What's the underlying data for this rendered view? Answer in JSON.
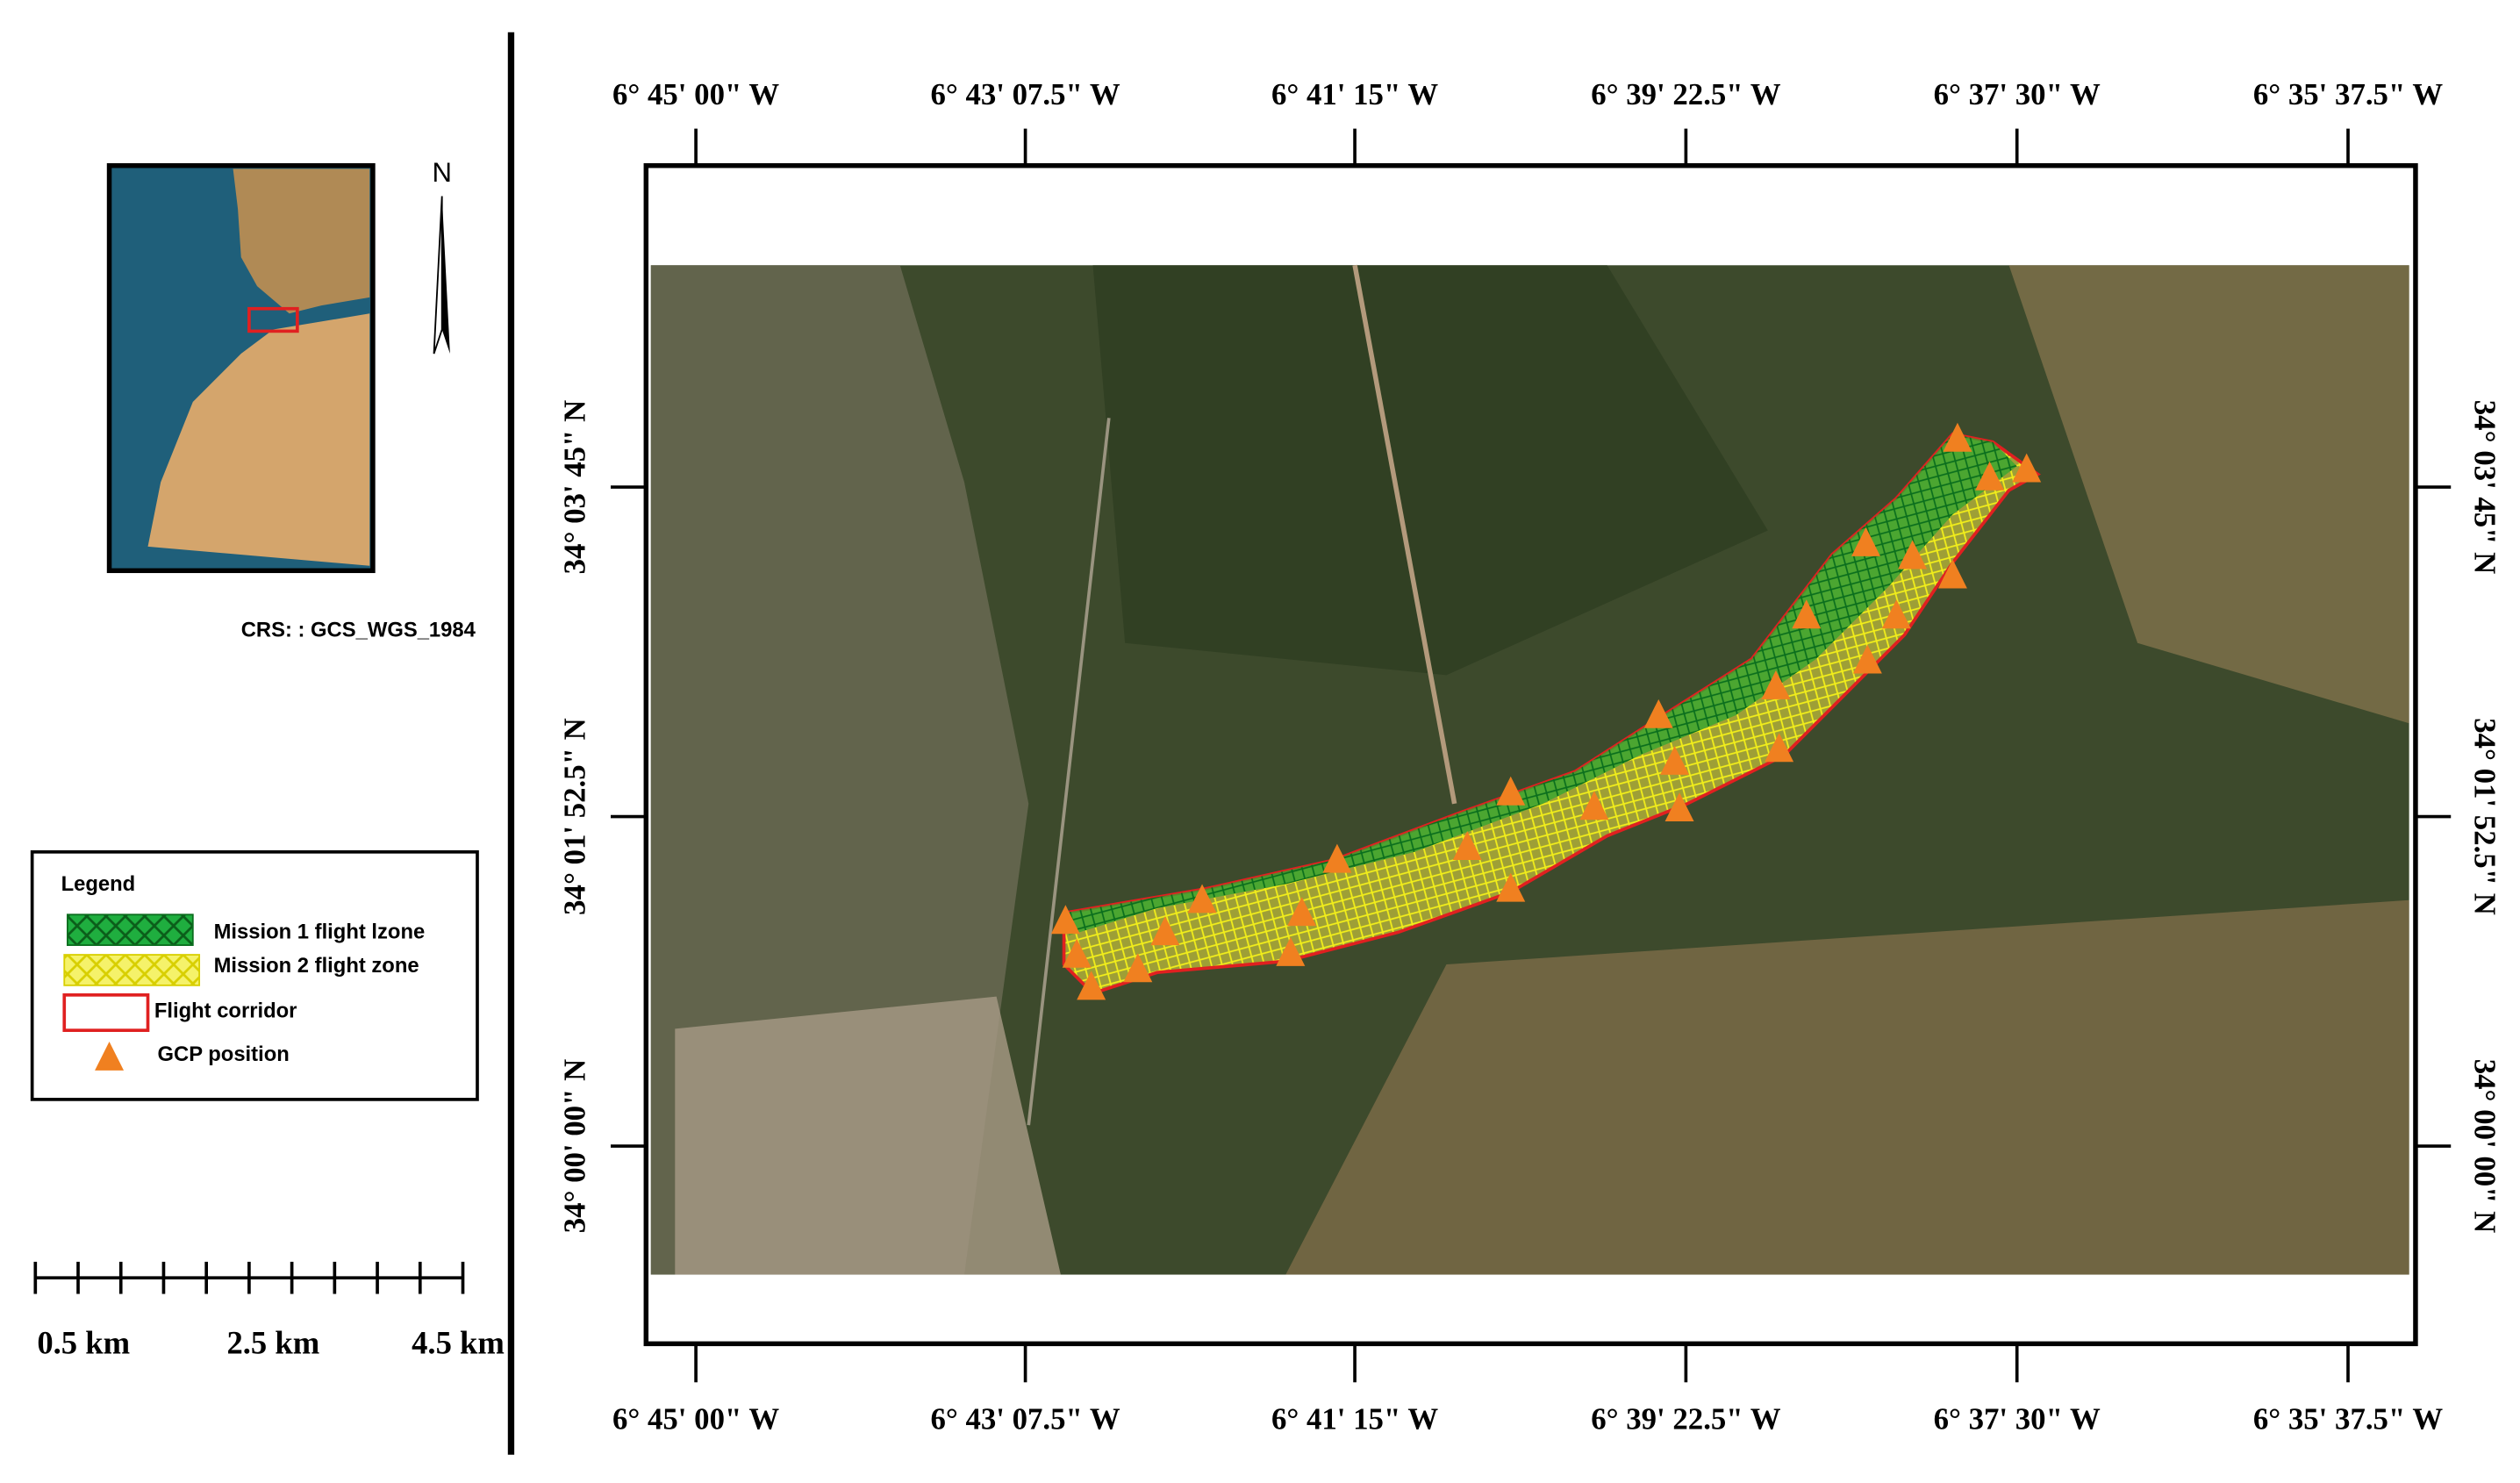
{
  "longitude_labels": [
    "6° 45' 00\" W",
    "6° 43' 07.5\" W",
    "6° 41' 15\" W",
    "6° 39' 22.5\" W",
    "6° 37' 30\" W",
    "6° 35' 37.5\" W"
  ],
  "latitude_labels": [
    "34° 03' 45\" N",
    "34° 01' 52.5\" N",
    "34° 00' 00\" N"
  ],
  "north_label": "N",
  "crs": "CRS: : GCS_WGS_1984",
  "legend": {
    "title": "Legend",
    "items": [
      "Mission 1 flight lzone",
      "Mission 2 flight zone",
      "Flight corridor",
      "GCP position"
    ]
  },
  "scale_labels": [
    "0.5 km",
    "2.5 km",
    "4.5 km"
  ]
}
